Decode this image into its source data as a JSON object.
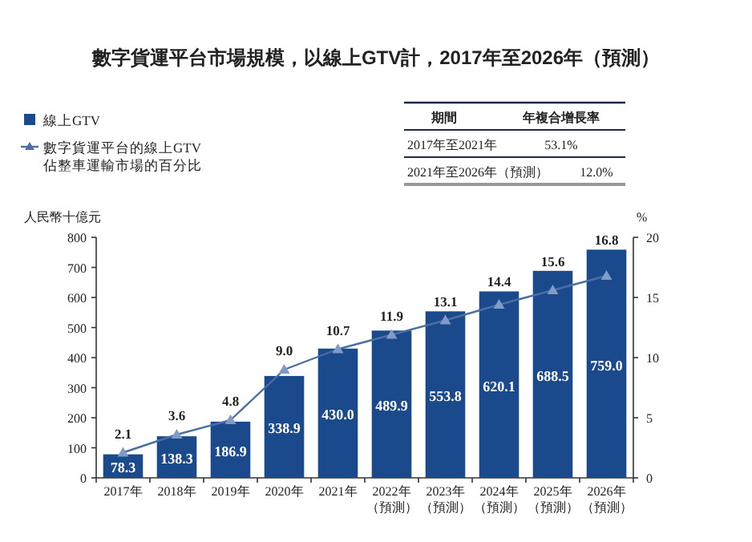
{
  "chart_data": {
    "type": "bar",
    "title": "數字貨運平台市場規模，以線上GTV計，2017年至2026年（預測）",
    "categories": [
      "2017年",
      "2018年",
      "2019年",
      "2020年",
      "2021年",
      "2022年（預測）",
      "2023年（預測）",
      "2024年（預測）",
      "2025年（預測）",
      "2026年（預測）"
    ],
    "series": [
      {
        "name": "線上GTV",
        "color": "#1b4a8c",
        "values": [
          78.3,
          138.3,
          186.9,
          338.9,
          430.0,
          489.9,
          553.8,
          620.1,
          688.5,
          759.0
        ],
        "value_labels": [
          "78.3",
          "138.3",
          "186.9",
          "338.9",
          "430.0",
          "489.9",
          "553.8",
          "620.1",
          "688.5",
          "759.0"
        ]
      },
      {
        "name": "數字貨運平台的線上GTV佔整車運輸市場的百分比",
        "type": "line",
        "axis": "y2",
        "color": "#4a6fa5",
        "marker": "triangle",
        "values": [
          2.1,
          3.6,
          4.8,
          9.0,
          10.7,
          11.9,
          13.1,
          14.4,
          15.6,
          16.8
        ],
        "value_labels": [
          "2.1",
          "3.6",
          "4.8",
          "9.0",
          "10.7",
          "11.9",
          "13.1",
          "14.4",
          "15.6",
          "16.8"
        ]
      }
    ],
    "ylabel": "人民幣十億元",
    "y2label": "%",
    "ylim": [
      0,
      800
    ],
    "yticks": [
      0,
      100,
      200,
      300,
      400,
      500,
      600,
      700,
      800
    ],
    "y2lim": [
      0,
      20
    ],
    "y2ticks": [
      0,
      5,
      10,
      15,
      20
    ],
    "legend": "top left",
    "grid": false,
    "annotations": [
      "期間",
      "年複合增長率",
      "2017年至2021年",
      "53.1%",
      "2021年至2026年（預測）",
      "12.0%"
    ]
  }
}
